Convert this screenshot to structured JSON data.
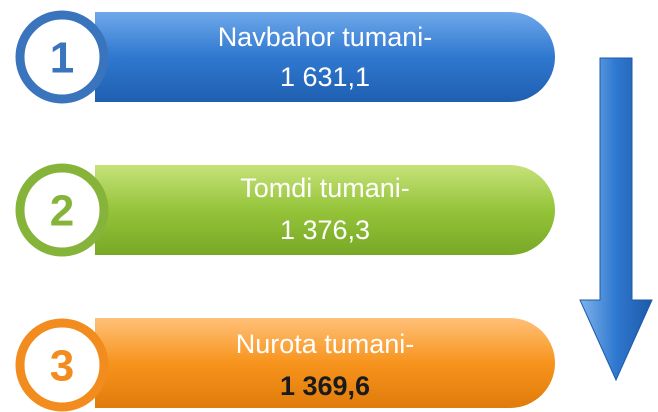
{
  "items": [
    {
      "number": 1,
      "name": "Navbahor tumani-",
      "value": "1 631,1"
    },
    {
      "number": 2,
      "name": "Tomdi tumani-",
      "value": "1 376,3"
    },
    {
      "number": 3,
      "name": "Nurota tumani-",
      "value": "1 369,6"
    }
  ]
}
